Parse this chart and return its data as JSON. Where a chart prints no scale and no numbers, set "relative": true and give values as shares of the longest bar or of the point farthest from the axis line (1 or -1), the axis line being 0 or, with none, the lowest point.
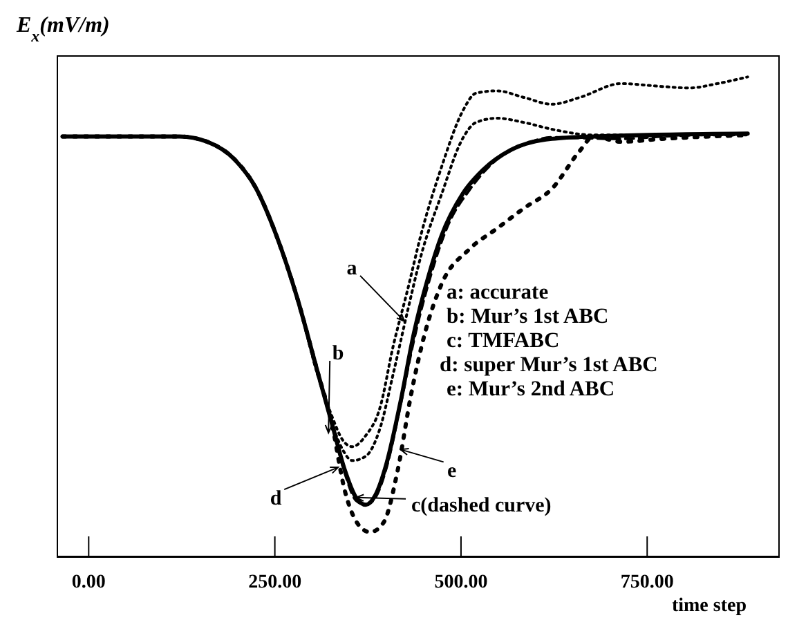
{
  "chart_data": {
    "type": "line",
    "relative": true,
    "ylabel": "E$_{x}$(mV/m)",
    "xlabel": "time step",
    "xlim": [
      -43,
      928
    ],
    "xticks": [
      {
        "value": 0,
        "label": "0.00"
      },
      {
        "value": 250,
        "label": "250.00"
      },
      {
        "value": 500,
        "label": "500.00"
      },
      {
        "value": 750,
        "label": "750.00"
      }
    ],
    "grid": false,
    "legend": false,
    "marker": "none",
    "series": [
      {
        "color": "#000000",
        "line_style": "solid",
        "x": [
          -35,
          122,
          159,
          196,
          224,
          252,
          280,
          307,
          326,
          344,
          359,
          372,
          385,
          400,
          419,
          437,
          456,
          474,
          502,
          530,
          567,
          622,
          678,
          885
        ],
        "values": [
          0.876,
          0.876,
          0.865,
          0.828,
          0.77,
          0.67,
          0.54,
          0.388,
          0.282,
          0.181,
          0.124,
          0.109,
          0.129,
          0.195,
          0.325,
          0.468,
          0.583,
          0.67,
          0.756,
          0.807,
          0.848,
          0.871,
          0.876,
          0.882
        ]
      },
      {
        "color": "#000000",
        "line_style": "dotted",
        "x": [
          -35,
          122,
          159,
          196,
          224,
          252,
          280,
          307,
          326,
          341,
          354,
          372,
          391,
          409,
          428,
          446,
          474,
          502,
          520,
          548,
          585,
          622,
          659,
          715,
          770,
          807,
          844,
          885
        ],
        "values": [
          0.876,
          0.876,
          0.865,
          0.828,
          0.77,
          0.67,
          0.54,
          0.382,
          0.296,
          0.244,
          0.23,
          0.253,
          0.31,
          0.44,
          0.555,
          0.67,
          0.813,
          0.928,
          0.966,
          0.971,
          0.957,
          0.943,
          0.957,
          0.986,
          0.98,
          0.977,
          0.986,
          1.0
        ]
      },
      {
        "color": "#000000",
        "line_style": "dashed",
        "x": [
          -35,
          122,
          159,
          196,
          224,
          252,
          280,
          307,
          326,
          344,
          359,
          372,
          385,
          400,
          419,
          437,
          456,
          483,
          511,
          548,
          585,
          622,
          715,
          770,
          885
        ],
        "values": [
          0.876,
          0.876,
          0.865,
          0.828,
          0.77,
          0.67,
          0.54,
          0.388,
          0.282,
          0.175,
          0.118,
          0.109,
          0.124,
          0.187,
          0.319,
          0.454,
          0.569,
          0.693,
          0.764,
          0.828,
          0.859,
          0.874,
          0.871,
          0.876,
          0.882
        ]
      },
      {
        "color": "#000000",
        "line_style": "dotted",
        "x": [
          -35,
          122,
          159,
          196,
          224,
          252,
          280,
          307,
          326,
          341,
          354,
          372,
          391,
          409,
          428,
          446,
          474,
          502,
          520,
          548,
          585,
          622,
          678,
          885
        ],
        "values": [
          0.876,
          0.876,
          0.865,
          0.828,
          0.77,
          0.67,
          0.54,
          0.388,
          0.282,
          0.224,
          0.201,
          0.21,
          0.267,
          0.382,
          0.511,
          0.626,
          0.756,
          0.871,
          0.905,
          0.914,
          0.905,
          0.891,
          0.879,
          0.879
        ]
      },
      {
        "color": "#000000",
        "line_style": "dotted",
        "x": [
          -35,
          122,
          159,
          196,
          224,
          252,
          280,
          307,
          326,
          344,
          363,
          378,
          396,
          415,
          433,
          452,
          474,
          511,
          548,
          585,
          622,
          659,
          678,
          715,
          770,
          885
        ],
        "values": [
          0.876,
          0.876,
          0.865,
          0.828,
          0.77,
          0.67,
          0.54,
          0.388,
          0.282,
          0.138,
          0.066,
          0.052,
          0.072,
          0.181,
          0.339,
          0.469,
          0.569,
          0.641,
          0.684,
          0.727,
          0.767,
          0.845,
          0.876,
          0.865,
          0.871,
          0.879
        ]
      }
    ],
    "annotations": [
      {
        "text": "a",
        "x": 424,
        "y": 0.491
      },
      {
        "text": "b",
        "x": 322,
        "y": 0.259
      },
      {
        "text": "c(dashed curve)",
        "x": 359,
        "y": 0.124
      },
      {
        "text": "d",
        "x": 335,
        "y": 0.187
      },
      {
        "text": "e",
        "x": 419,
        "y": 0.224
      },
      "a: accurate",
      "b: Mur’s 1st ABC",
      "c: TMFABC",
      "d: super Mur’s 1st ABC",
      "e: Mur’s 2nd ABC"
    ]
  }
}
